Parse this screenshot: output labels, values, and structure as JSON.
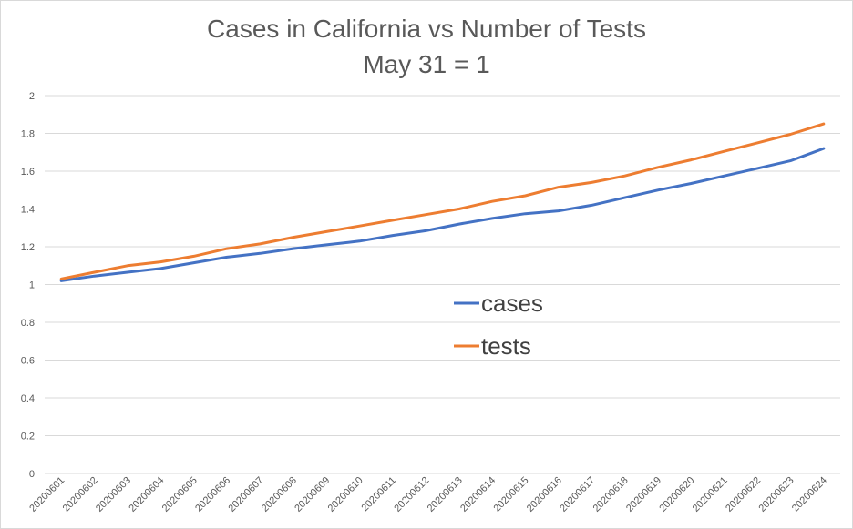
{
  "chart_data": {
    "type": "line",
    "title": "Cases in California vs Number of Tests",
    "subtitle": "May 31 = 1",
    "xlabel": "",
    "ylabel": "",
    "categories": [
      "20200601",
      "20200602",
      "20200603",
      "20200604",
      "20200605",
      "20200606",
      "20200607",
      "20200608",
      "20200609",
      "20200610",
      "20200611",
      "20200612",
      "20200613",
      "20200614",
      "20200615",
      "20200616",
      "20200617",
      "20200618",
      "20200619",
      "20200620",
      "20200621",
      "20200622",
      "20200623",
      "20200624"
    ],
    "ylim": [
      0,
      2
    ],
    "yticks": [
      "0",
      "0.2",
      "0.4",
      "0.6",
      "0.8",
      "1",
      "1.2",
      "1.4",
      "1.6",
      "1.8",
      "2"
    ],
    "grid": true,
    "legend_position": "center-right",
    "series": [
      {
        "name": "cases",
        "color": "#4472c4",
        "values": [
          1.02,
          1.045,
          1.065,
          1.085,
          1.115,
          1.145,
          1.165,
          1.19,
          1.21,
          1.23,
          1.26,
          1.285,
          1.32,
          1.35,
          1.375,
          1.39,
          1.42,
          1.46,
          1.5,
          1.535,
          1.575,
          1.615,
          1.655,
          1.72
        ]
      },
      {
        "name": "tests",
        "color": "#ed7d31",
        "values": [
          1.03,
          1.065,
          1.1,
          1.12,
          1.15,
          1.19,
          1.215,
          1.25,
          1.28,
          1.31,
          1.34,
          1.37,
          1.4,
          1.44,
          1.47,
          1.515,
          1.54,
          1.575,
          1.62,
          1.66,
          1.705,
          1.75,
          1.795,
          1.85
        ]
      }
    ]
  }
}
